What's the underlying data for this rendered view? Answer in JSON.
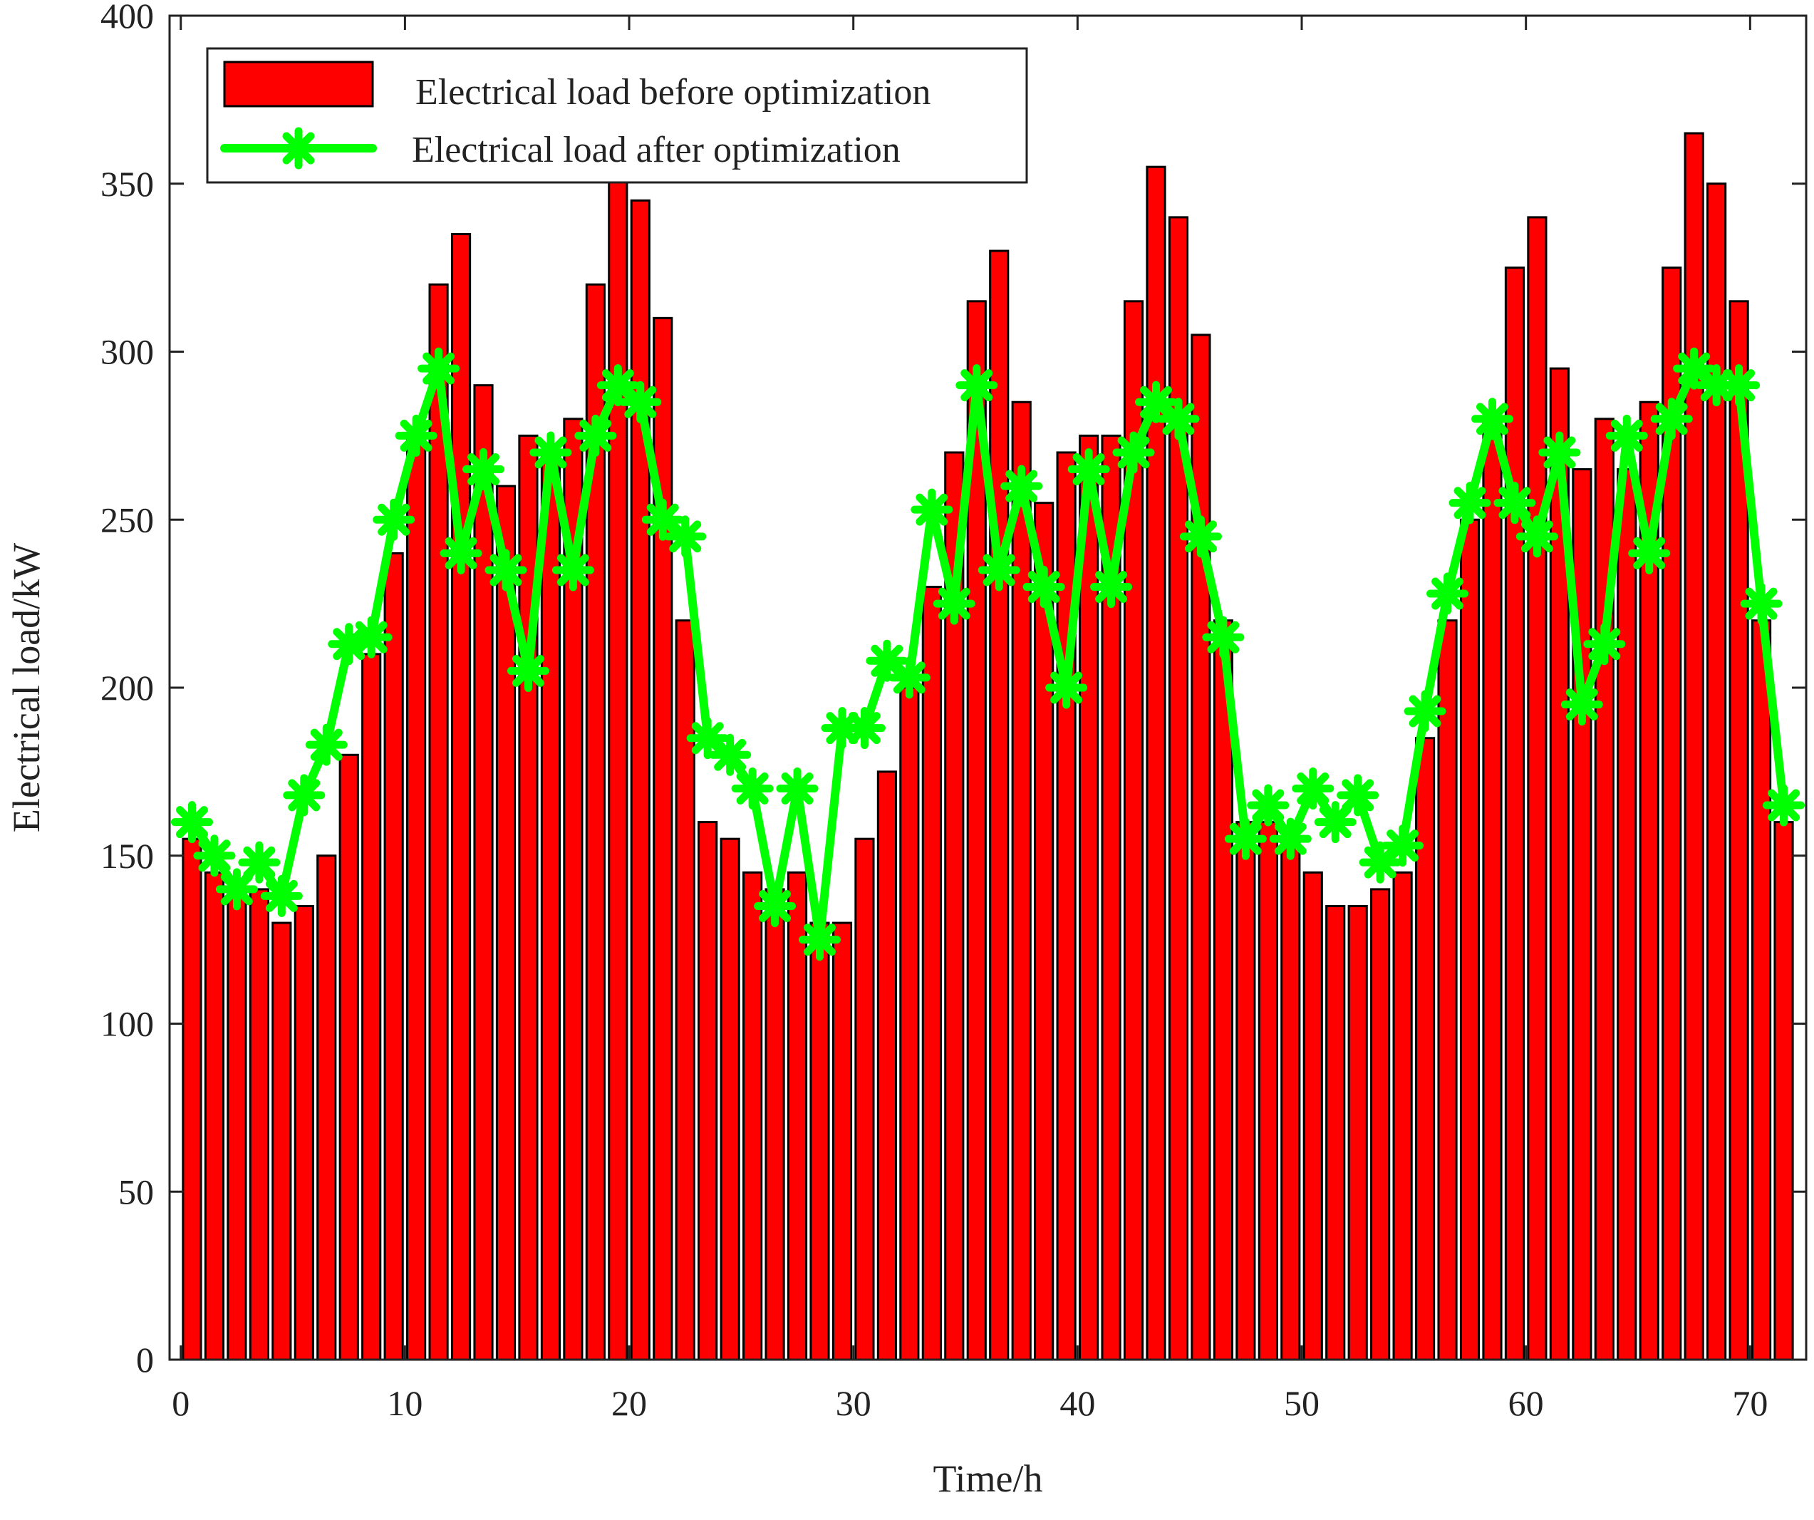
{
  "chart_data": {
    "type": "bar",
    "title": "",
    "xlabel": "Time/h",
    "ylabel": "Electrical load/kW",
    "xlim": [
      -0.5,
      72.5
    ],
    "ylim": [
      0,
      400
    ],
    "x_ticks": [
      0,
      10,
      20,
      30,
      40,
      50,
      60,
      70
    ],
    "y_ticks": [
      0,
      50,
      100,
      150,
      200,
      250,
      300,
      350,
      400
    ],
    "grid": false,
    "legend_position": "top-left",
    "x": [
      1,
      2,
      3,
      4,
      5,
      6,
      7,
      8,
      9,
      10,
      11,
      12,
      13,
      14,
      15,
      16,
      17,
      18,
      19,
      20,
      21,
      22,
      23,
      24,
      25,
      26,
      27,
      28,
      29,
      30,
      31,
      32,
      33,
      34,
      35,
      36,
      37,
      38,
      39,
      40,
      41,
      42,
      43,
      44,
      45,
      46,
      47,
      48,
      49,
      50,
      51,
      52,
      53,
      54,
      55,
      56,
      57,
      58,
      59,
      60,
      61,
      62,
      63,
      64,
      65,
      66,
      67,
      68,
      69,
      70,
      71,
      72
    ],
    "series": [
      {
        "name": "Electrical load before optimization",
        "type": "bar",
        "color": "#ff0000",
        "values": [
          155,
          145,
          140,
          140,
          130,
          135,
          150,
          180,
          210,
          240,
          275,
          320,
          335,
          290,
          260,
          275,
          270,
          280,
          320,
          360,
          345,
          310,
          220,
          160,
          155,
          145,
          140,
          145,
          130,
          130,
          155,
          175,
          200,
          230,
          270,
          315,
          330,
          285,
          255,
          270,
          275,
          275,
          315,
          355,
          340,
          305,
          220,
          160,
          160,
          155,
          145,
          135,
          135,
          140,
          145,
          185,
          220,
          250,
          280,
          325,
          340,
          295,
          265,
          280,
          265,
          285,
          325,
          365,
          350,
          315,
          220,
          160
        ]
      },
      {
        "name": "Electrical load after optimization",
        "type": "line",
        "color": "#00ff00",
        "marker": "asterisk",
        "values": [
          160,
          150,
          140,
          148,
          138,
          168,
          183,
          213,
          215,
          250,
          275,
          295,
          240,
          265,
          235,
          205,
          270,
          235,
          275,
          290,
          285,
          250,
          245,
          185,
          180,
          170,
          135,
          170,
          125,
          188,
          188,
          208,
          203,
          253,
          225,
          290,
          235,
          260,
          230,
          200,
          265,
          230,
          270,
          285,
          280,
          245,
          215,
          155,
          165,
          155,
          170,
          160,
          168,
          148,
          153,
          193,
          228,
          255,
          280,
          255,
          245,
          270,
          195,
          213,
          275,
          240,
          280,
          295,
          290,
          290,
          225,
          165
        ]
      }
    ]
  }
}
